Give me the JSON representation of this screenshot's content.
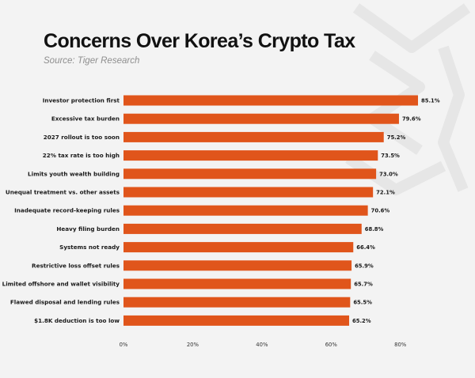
{
  "header": {
    "title": "Concerns Over Korea’s Crypto Tax",
    "source": "Source: Tiger Research"
  },
  "colors": {
    "bar": "#e0551b",
    "background": "#f3f3f3",
    "watermark": "#e6e6e6"
  },
  "chart_data": {
    "type": "bar",
    "orientation": "horizontal",
    "categories": [
      "Investor protection first",
      "Excessive tax burden",
      "2027 rollout is too soon",
      "22% tax rate is too high",
      "Limits youth wealth building",
      "Unequal treatment vs. other assets",
      "Inadequate record-keeping rules",
      "Heavy filing burden",
      "Systems not ready",
      "Restrictive loss offset rules",
      "Limited offshore and wallet visibility",
      "Flawed disposal and lending rules",
      "$1.8K deduction is too low"
    ],
    "values": [
      85.1,
      79.6,
      75.2,
      73.5,
      73.0,
      72.1,
      70.6,
      68.8,
      66.4,
      65.9,
      65.7,
      65.5,
      65.2
    ],
    "value_labels": [
      "85.1%",
      "79.6%",
      "75.2%",
      "73.5%",
      "73.0%",
      "72.1%",
      "70.6%",
      "68.8%",
      "66.4%",
      "65.9%",
      "65.7%",
      "65.5%",
      "65.2%"
    ],
    "xticks": [
      0,
      20,
      40,
      60,
      80
    ],
    "xtick_labels": [
      "0%",
      "20%",
      "40%",
      "60%",
      "80%"
    ],
    "xlim": [
      0,
      85.1
    ],
    "grid": false,
    "legend": "none"
  }
}
